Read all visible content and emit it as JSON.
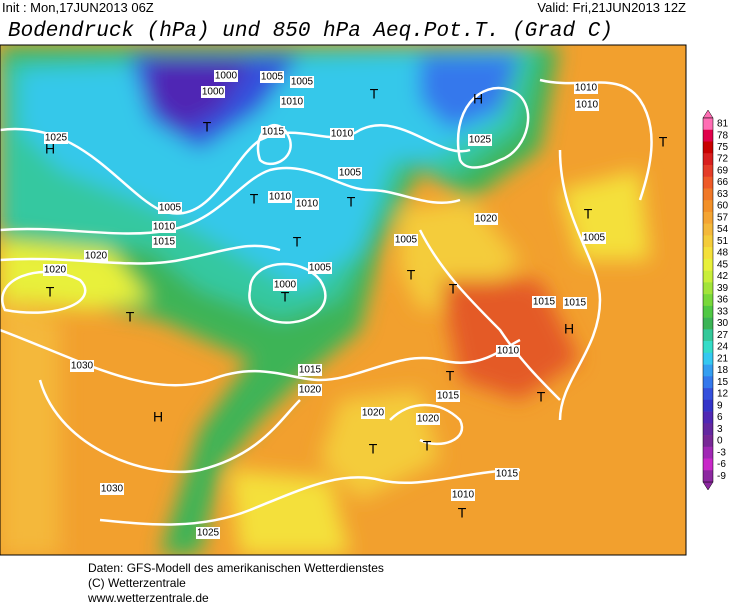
{
  "header": {
    "init": "Init : Mon,17JUN2013 06Z",
    "valid": "Valid: Fri,21JUN2013 12Z",
    "title": "Bodendruck (hPa) und 850 hPa Aeq.Pot.T. (Grad C)"
  },
  "legend": {
    "levels": [
      "81",
      "78",
      "75",
      "72",
      "69",
      "66",
      "63",
      "60",
      "57",
      "54",
      "51",
      "48",
      "45",
      "42",
      "39",
      "36",
      "33",
      "30",
      "27",
      "24",
      "21",
      "18",
      "15",
      "12",
      "9",
      "6",
      "3",
      "0",
      "-3",
      "-6",
      "-9"
    ],
    "colors": [
      "#ff6eb4",
      "#e0004a",
      "#c80000",
      "#d81e1e",
      "#e43c28",
      "#ee5a28",
      "#f07828",
      "#f29028",
      "#f4a432",
      "#f4b83a",
      "#f4cc3a",
      "#f4e03a",
      "#e8f03a",
      "#c8ee3a",
      "#a2e43a",
      "#78d83a",
      "#50c844",
      "#3cb456",
      "#34c89a",
      "#34dcc8",
      "#34c8f0",
      "#349ef0",
      "#3478ec",
      "#3450dc",
      "#3434c8",
      "#5028b4",
      "#6428a0",
      "#782896",
      "#a028b4",
      "#c828c8",
      "#8c28a0"
    ]
  },
  "map": {
    "labels": [
      "1000",
      "1005",
      "1005",
      "1000",
      "1010",
      "1015",
      "T",
      "1010",
      "1025",
      "H",
      "H",
      "1025",
      "1010",
      "1010",
      "T",
      "T",
      "1005",
      "T",
      "1010",
      "1010",
      "T",
      "1005",
      "1010",
      "1015",
      "1020",
      "T",
      "1005",
      "1000",
      "T",
      "1020",
      "T",
      "T",
      "1005",
      "1020",
      "T",
      "1005",
      "T",
      "T",
      "1015",
      "1015",
      "H",
      "1010",
      "1015",
      "1020",
      "1030",
      "H",
      "1020",
      "1020",
      "T",
      "T",
      "1015",
      "T",
      "T",
      "1015",
      "1010",
      "T",
      "1030",
      "1025"
    ]
  },
  "footer": {
    "lines": [
      "Daten: GFS-Modell des amerikanischen Wetterdienstes",
      "(C) Wetterzentrale",
      "www.wetterzentrale.de"
    ]
  }
}
